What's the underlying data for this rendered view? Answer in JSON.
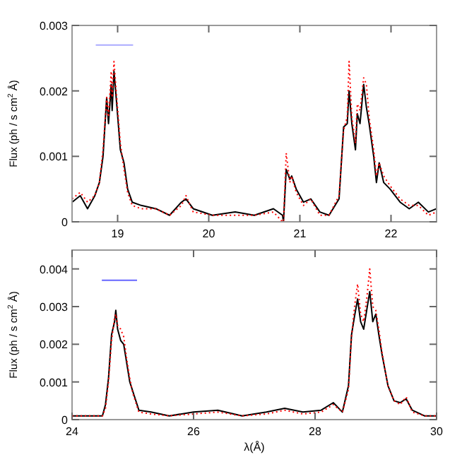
{
  "chart_data": [
    {
      "type": "line",
      "ylabel": "Flux (ph / s cm$^{2}$ Å)",
      "xlim": [
        18.5,
        22.5
      ],
      "ylim": [
        0,
        0.003
      ],
      "xticks": [
        19,
        20,
        21,
        22
      ],
      "yticks": [
        0,
        0.001,
        0.002,
        0.003
      ],
      "x": [
        18.5,
        18.59,
        18.67,
        18.75,
        18.8,
        18.84,
        18.88,
        18.9,
        18.93,
        18.94,
        18.96,
        18.99,
        19.03,
        19.07,
        19.11,
        19.16,
        19.26,
        19.42,
        19.57,
        19.7,
        19.75,
        19.83,
        20.04,
        20.29,
        20.5,
        20.71,
        20.81,
        20.82,
        20.85,
        20.89,
        20.91,
        20.96,
        21.04,
        21.12,
        21.22,
        21.32,
        21.43,
        21.48,
        21.52,
        21.54,
        21.57,
        21.61,
        21.63,
        21.66,
        21.7,
        21.73,
        21.76,
        21.81,
        21.84,
        21.87,
        21.92,
        21.99,
        22.1,
        22.2,
        22.3,
        22.41,
        22.5
      ],
      "series": [
        {
          "color": "#000000",
          "line_style": "solid",
          "values": [
            0.0003,
            0.0004,
            0.0002,
            0.0004,
            0.0006,
            0.001,
            0.0019,
            0.0015,
            0.0021,
            0.0017,
            0.0023,
            0.0018,
            0.0011,
            0.0009,
            0.0005,
            0.0003,
            0.00025,
            0.0002,
            0.0001,
            0.0003,
            0.00035,
            0.0002,
            0.0001,
            0.00015,
            0.0001,
            0.0002,
            0.0001,
            0,
            0.0008,
            0.00065,
            0.0007,
            0.0005,
            0.0003,
            0.00035,
            0.00015,
            0.0001,
            0.00035,
            0.00145,
            0.0015,
            0.002,
            0.0015,
            0.0011,
            0.00165,
            0.0015,
            0.0021,
            0.00175,
            0.0015,
            0.001,
            0.0006,
            0.0009,
            0.0006,
            0.0005,
            0.0003,
            0.0002,
            0.0003,
            0.00015,
            0.0002
          ]
        },
        {
          "color": "#ff0000",
          "line_style": "dotted",
          "values": [
            0.00035,
            0.00045,
            0.0003,
            0.0004,
            0.0006,
            0.0011,
            0.0019,
            0.0016,
            0.0023,
            0.0019,
            0.00245,
            0.0019,
            0.0012,
            0.0008,
            0.00045,
            0.00025,
            0.0002,
            0.0002,
            0.0001,
            0.00025,
            0.0004,
            0.00015,
            0.0001,
            0.0001,
            0.0001,
            0.00015,
            0,
            0,
            0.00105,
            0.0006,
            0.0007,
            0.00045,
            0.00025,
            0.00035,
            0.0001,
            0.0001,
            0.0004,
            0.0014,
            0.0016,
            0.00245,
            0.0016,
            0.0012,
            0.0018,
            0.0017,
            0.0022,
            0.0021,
            0.0016,
            0.0011,
            0.0007,
            0.0009,
            0.0007,
            0.00055,
            0.00035,
            0.00025,
            0.00025,
            0.0001,
            0.00015
          ]
        },
        {
          "color": "#aaaaff",
          "line_style": "solid",
          "x": [
            18.76,
            19.17
          ],
          "values": [
            0.0027,
            0.0027
          ]
        }
      ]
    },
    {
      "type": "line",
      "xlabel": "λ(Å)",
      "ylabel": "Flux (ph / s cm$^{2}$ Å)",
      "xlim": [
        24,
        30
      ],
      "ylim": [
        0,
        0.0045
      ],
      "xticks": [
        24,
        26,
        28,
        30
      ],
      "yticks": [
        0,
        0.001,
        0.002,
        0.003,
        0.004
      ],
      "x": [
        24,
        24.3,
        24.5,
        24.55,
        24.6,
        24.65,
        24.7,
        24.72,
        24.75,
        24.8,
        24.85,
        24.9,
        24.95,
        25,
        25.1,
        25.3,
        25.6,
        26,
        26.4,
        26.8,
        27.2,
        27.5,
        27.8,
        28.1,
        28.3,
        28.45,
        28.55,
        28.6,
        28.65,
        28.7,
        28.75,
        28.8,
        28.85,
        28.9,
        28.95,
        29,
        29.05,
        29.1,
        29.2,
        29.3,
        29.4,
        29.5,
        29.6,
        29.8,
        30
      ],
      "series": [
        {
          "color": "#000000",
          "line_style": "solid",
          "values": [
            0.0001,
            0.0001,
            0.0001,
            0.0004,
            0.0011,
            0.00225,
            0.0026,
            0.0029,
            0.0024,
            0.0021,
            0.002,
            0.0015,
            0.001,
            0.00075,
            0.00025,
            0.0002,
            0.0001,
            0.0002,
            0.00025,
            0.0001,
            0.0002,
            0.0003,
            0.0002,
            0.00025,
            0.00045,
            0.0002,
            0.0009,
            0.00225,
            0.00275,
            0.0032,
            0.0026,
            0.0024,
            0.0029,
            0.0034,
            0.0026,
            0.0028,
            0.00225,
            0.00175,
            0.0009,
            0.0005,
            0.00045,
            0.00055,
            0.00025,
            0.0001,
            0.0001
          ]
        },
        {
          "color": "#ff0000",
          "line_style": "dotted",
          "values": [
            0.0001,
            0.0001,
            0.0001,
            0.0003,
            0.001,
            0.0021,
            0.0027,
            0.0028,
            0.0025,
            0.0024,
            0.0022,
            0.0016,
            0.0011,
            0.0007,
            0.0002,
            0.00015,
            0.0001,
            0.00015,
            0.0002,
            0.0001,
            0.00015,
            0.00025,
            0.00015,
            0.0002,
            0.0004,
            0.0002,
            0.0008,
            0.0022,
            0.003,
            0.0036,
            0.0028,
            0.0026,
            0.0032,
            0.004,
            0.003,
            0.0029,
            0.0024,
            0.0018,
            0.0009,
            0.0005,
            0.0004,
            0.0006,
            0.0002,
            0.0001,
            0.0001
          ]
        },
        {
          "color": "#6666ff",
          "line_style": "solid",
          "x": [
            24.49,
            25.07
          ],
          "values": [
            0.0037,
            0.0037
          ]
        }
      ]
    }
  ]
}
